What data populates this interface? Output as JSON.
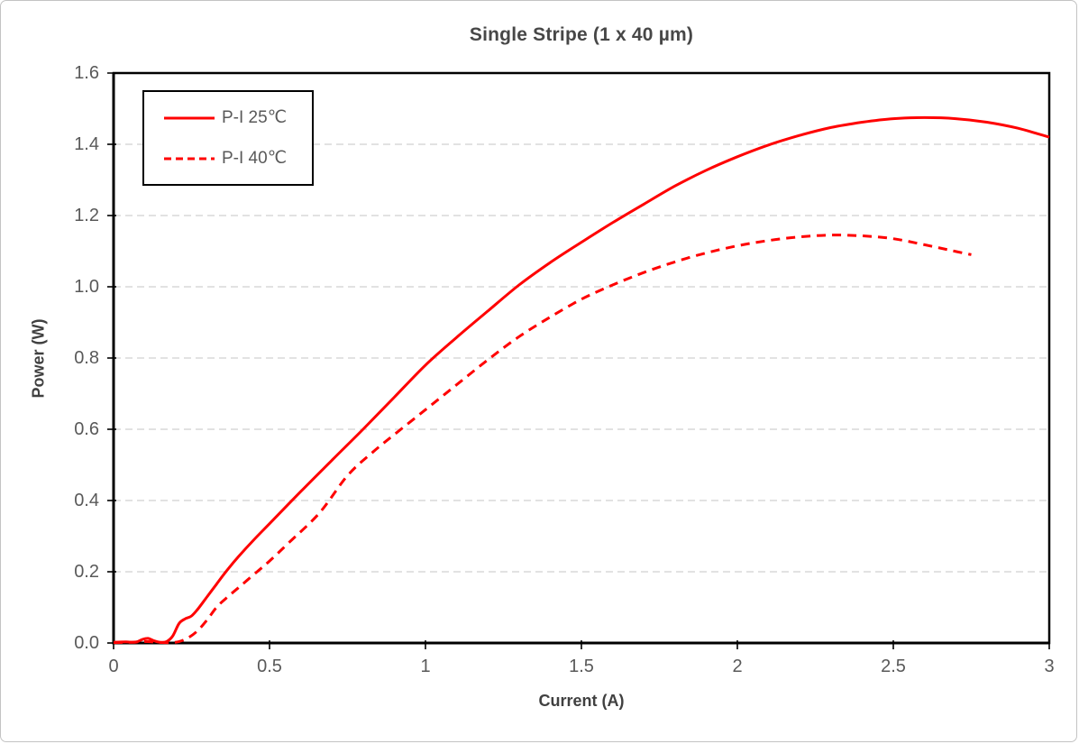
{
  "figure": {
    "title": "Single Stripe (1 x 40 µm)"
  },
  "chart_data": {
    "type": "line",
    "title": "Single Stripe (1 x 40 µm)",
    "xlabel": "Current (A)",
    "ylabel": "Power (W)",
    "xlim": [
      0,
      3
    ],
    "ylim": [
      0,
      1.6
    ],
    "x_ticks": [
      0,
      0.5,
      1,
      1.5,
      2,
      2.5,
      3
    ],
    "x_tick_labels": [
      "0",
      "0.5",
      "1",
      "1.5",
      "2",
      "2.5",
      "3"
    ],
    "y_ticks": [
      0,
      0.2,
      0.4,
      0.6,
      0.8,
      1.0,
      1.2,
      1.4,
      1.6
    ],
    "y_tick_labels": [
      "0.0",
      "0.2",
      "0.4",
      "0.6",
      "0.8",
      "1.0",
      "1.2",
      "1.4",
      "1.6"
    ],
    "grid": "horizontal-dashed",
    "legend_position": "top-left-inside",
    "series": [
      {
        "name": "P-I 25℃",
        "style": "solid",
        "color": "#ff0000",
        "x": [
          0.0,
          0.04,
          0.07,
          0.09,
          0.11,
          0.13,
          0.15,
          0.17,
          0.19,
          0.21,
          0.23,
          0.25,
          0.27,
          0.3,
          0.33,
          0.36,
          0.4,
          0.45,
          0.5,
          0.6,
          0.7,
          0.8,
          0.9,
          1.0,
          1.1,
          1.2,
          1.3,
          1.4,
          1.5,
          1.6,
          1.7,
          1.8,
          1.9,
          2.0,
          2.1,
          2.2,
          2.3,
          2.4,
          2.5,
          2.6,
          2.7,
          2.8,
          2.9,
          3.0
        ],
        "y": [
          0.002,
          0.003,
          0.002,
          0.009,
          0.013,
          0.006,
          0.002,
          0.004,
          0.02,
          0.055,
          0.068,
          0.076,
          0.095,
          0.13,
          0.165,
          0.2,
          0.242,
          0.29,
          0.335,
          0.425,
          0.513,
          0.6,
          0.69,
          0.78,
          0.858,
          0.932,
          1.005,
          1.068,
          1.125,
          1.18,
          1.232,
          1.283,
          1.327,
          1.365,
          1.398,
          1.425,
          1.447,
          1.462,
          1.472,
          1.475,
          1.472,
          1.462,
          1.445,
          1.42
        ]
      },
      {
        "name": "P-I 40℃",
        "style": "dashed",
        "color": "#ff0000",
        "x": [
          0.0,
          0.05,
          0.1,
          0.14,
          0.18,
          0.21,
          0.24,
          0.27,
          0.3,
          0.33,
          0.36,
          0.4,
          0.46,
          0.5,
          0.56,
          0.66,
          0.75,
          0.83,
          0.9,
          1.0,
          1.1,
          1.2,
          1.3,
          1.4,
          1.5,
          1.6,
          1.7,
          1.8,
          1.9,
          2.0,
          2.1,
          2.2,
          2.3,
          2.4,
          2.5,
          2.6,
          2.68,
          2.75
        ],
        "y": [
          0.001,
          0.002,
          0.004,
          0.002,
          0.001,
          0.004,
          0.015,
          0.035,
          0.065,
          0.1,
          0.125,
          0.155,
          0.2,
          0.23,
          0.28,
          0.365,
          0.47,
          0.535,
          0.585,
          0.655,
          0.725,
          0.795,
          0.86,
          0.915,
          0.965,
          1.005,
          1.04,
          1.07,
          1.095,
          1.115,
          1.13,
          1.14,
          1.145,
          1.143,
          1.135,
          1.118,
          1.103,
          1.09
        ]
      }
    ]
  },
  "colors": {
    "series_red": "#ff0000",
    "tick_label": "#595959",
    "axis_title": "#404040",
    "gridline": "#d9d9d9",
    "axis_line": "#000000",
    "legend_border": "#000000",
    "figure_border": "#c3c3c3"
  }
}
